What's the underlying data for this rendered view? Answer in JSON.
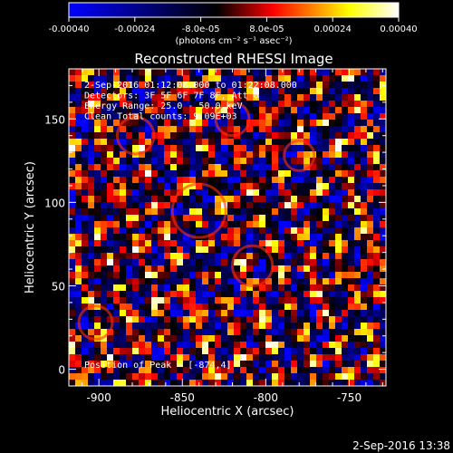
{
  "colorbar": {
    "tick_labels": [
      "-0.00040",
      "-0.00024",
      "-8.0e-05",
      "8.0e-05",
      "0.00024",
      "0.00040"
    ],
    "unit_label": "(photons cm⁻² s⁻¹ asec⁻²)",
    "range": [
      -0.0004,
      0.0004
    ],
    "colors": [
      "#0000ff",
      "#000000",
      "#ff0000",
      "#ffff00",
      "#ffffff"
    ]
  },
  "chart_data": {
    "type": "heatmap",
    "title": "Reconstructed RHESSI Image",
    "xlabel": "Heliocentric X (arcsec)",
    "ylabel": "Heliocentric Y (arcsec)",
    "xlim": [
      -918,
      -728
    ],
    "ylim": [
      -10,
      180
    ],
    "xticks": [
      -900,
      -850,
      -800,
      -750
    ],
    "yticks": [
      0,
      50,
      100,
      150
    ],
    "xtick_labels": [
      "-900",
      "-850",
      "-800",
      "-750"
    ],
    "ytick_labels": [
      "0",
      "50",
      "100",
      "150"
    ],
    "annotations": [
      "2-Sep-2016 01:12:08.000 to 01:22:08.000",
      "Detectors: 3F 5F 6F 7F 8F, Att 0",
      "Energy Range: 25.0 - 50.0 keV",
      "Clean   Total counts: 9.09E+03"
    ],
    "peak_label": "Position of Peak = [-874,4]",
    "peak_position": [
      -874,
      4
    ]
  },
  "footer": {
    "timestamp": "2-Sep-2016 13:38"
  }
}
